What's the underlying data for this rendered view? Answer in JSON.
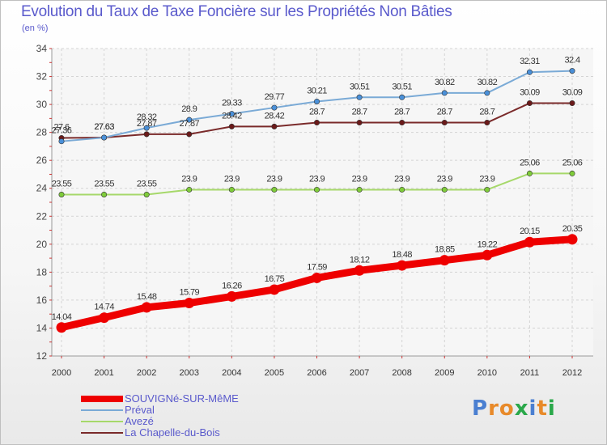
{
  "title": "Evolution du Taux de Taxe Foncière sur les Propriétés Non Bâties",
  "subtitle": "(en %)",
  "brand": {
    "text": "Proxiti",
    "letters": [
      {
        "ch": "P",
        "color": "#4a7fd1"
      },
      {
        "ch": "r",
        "color": "#e88a2a"
      },
      {
        "ch": "o",
        "color": "#e88a2a"
      },
      {
        "ch": "x",
        "color": "#2aa84a"
      },
      {
        "ch": "i",
        "color": "#4a7fd1"
      },
      {
        "ch": "t",
        "color": "#e88a2a"
      },
      {
        "ch": "i",
        "color": "#2aa84a"
      }
    ]
  },
  "chart_data": {
    "type": "line",
    "title": "Evolution du Taux de Taxe Foncière sur les Propriétés Non Bâties",
    "ylabel": "(en %)",
    "xlabel": "",
    "categories": [
      "2000",
      "2001",
      "2002",
      "2003",
      "2004",
      "2005",
      "2006",
      "2007",
      "2008",
      "2009",
      "2010",
      "2011",
      "2012"
    ],
    "ylim": [
      12,
      34
    ],
    "yticks": [
      12,
      14,
      16,
      18,
      20,
      22,
      24,
      26,
      28,
      30,
      32,
      34
    ],
    "grid": true,
    "legend": "bottom-left",
    "series": [
      {
        "name": "SOUVIGNé-SUR-MêME",
        "color": "#ee0000",
        "style": "thick",
        "values": [
          14.04,
          14.74,
          15.48,
          15.79,
          16.26,
          16.75,
          17.59,
          18.12,
          18.48,
          18.85,
          19.22,
          20.15,
          20.35
        ],
        "labels": [
          "14.04",
          "14.74",
          "15.48",
          "15.79",
          "16.26",
          "16.75",
          "17.59",
          "18.12",
          "18.48",
          "18.85",
          "19.22",
          "20.15",
          "20.35"
        ]
      },
      {
        "name": "Préval",
        "color": "#7aaad6",
        "marker": "#4a90d9",
        "style": "thin",
        "values": [
          27.36,
          27.63,
          28.32,
          28.9,
          29.33,
          29.77,
          30.21,
          30.51,
          30.51,
          30.82,
          30.82,
          32.31,
          32.4
        ],
        "labels": [
          "27.36",
          "27.63",
          "28.32",
          "28.9",
          "29.33",
          "29.77",
          "30.21",
          "30.51",
          "30.51",
          "30.82",
          "30.82",
          "32.31",
          "32.4"
        ]
      },
      {
        "name": "Avezé",
        "color": "#a6d86a",
        "marker": "#7fcc3a",
        "style": "thin",
        "values": [
          23.55,
          23.55,
          23.55,
          23.9,
          23.9,
          23.9,
          23.9,
          23.9,
          23.9,
          23.9,
          23.9,
          25.06,
          25.06
        ],
        "labels": [
          "23.55",
          "23.55",
          "23.55",
          "23.9",
          "23.9",
          "23.9",
          "23.9",
          "23.9",
          "23.9",
          "23.9",
          "23.9",
          "25.06",
          "25.06"
        ]
      },
      {
        "name": "La Chapelle-du-Bois",
        "color": "#7a2a2a",
        "marker": "#6b1a1a",
        "style": "thin",
        "values": [
          27.6,
          27.63,
          27.87,
          27.87,
          28.42,
          28.42,
          28.7,
          28.7,
          28.7,
          28.7,
          28.7,
          30.09,
          30.09
        ],
        "labels": [
          "27.6",
          "27.63",
          "27.87",
          "27.87",
          "28.42",
          "28.42",
          "28.7",
          "28.7",
          "28.7",
          "28.7",
          "28.7",
          "30.09",
          "30.09"
        ]
      }
    ]
  }
}
